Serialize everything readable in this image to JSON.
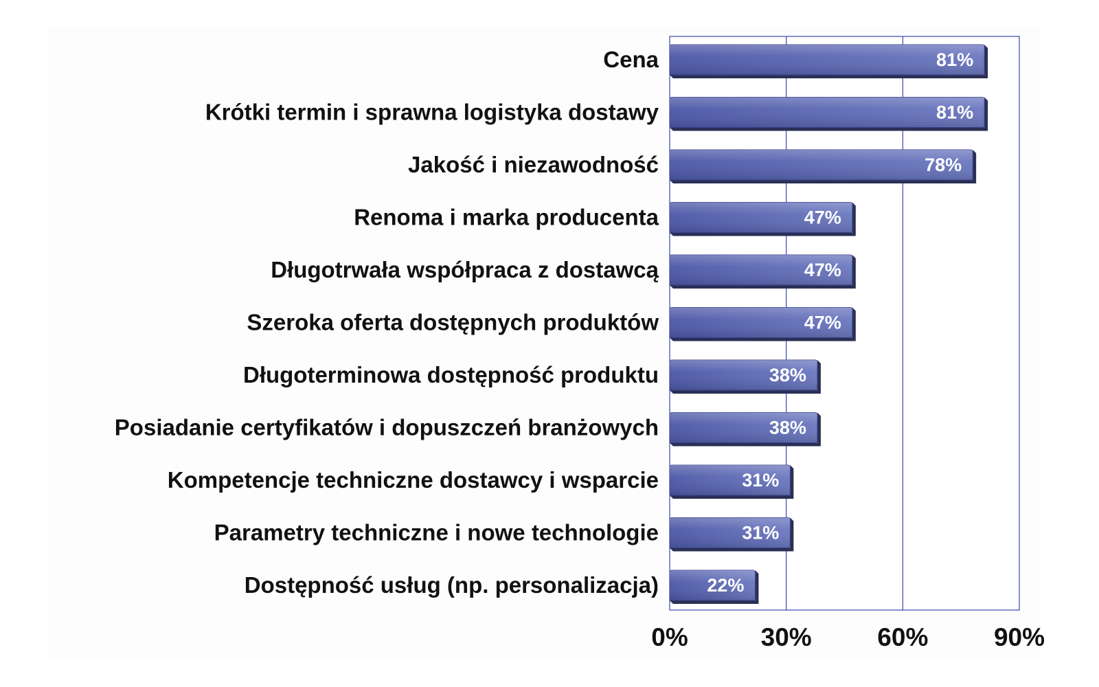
{
  "chart_data": {
    "type": "bar",
    "orientation": "horizontal",
    "title": "",
    "xlabel": "",
    "ylabel": "",
    "categories": [
      "Cena",
      "Krótki termin i sprawna logistyka dostawy",
      "Jakość i niezawodność",
      "Renoma i marka producenta",
      "Długotrwała współpraca z dostawcą",
      "Szeroka oferta dostępnych produktów",
      "Długoterminowa dostępność produktu",
      "Posiadanie certyfikatów i dopuszczeń branżowych",
      "Kompetencje techniczne dostawcy i wsparcie",
      "Parametry techniczne i nowe technologie",
      "Dostępność usług (np. personalizacja)"
    ],
    "values": [
      81,
      81,
      78,
      47,
      47,
      47,
      38,
      38,
      31,
      31,
      22
    ],
    "data_labels": [
      "81%",
      "81%",
      "78%",
      "47%",
      "47%",
      "47%",
      "38%",
      "38%",
      "31%",
      "31%",
      "22%"
    ],
    "xlim": [
      0,
      90
    ],
    "x_ticks": [
      0,
      30,
      60,
      90
    ],
    "x_tick_labels": [
      "0%",
      "30%",
      "60%",
      "90%"
    ],
    "grid": "vertical",
    "legend": "none",
    "bar_color": "#6b78bf",
    "bar_color_dark": "#4b57a6",
    "bar_shadow_color": "#2a2f55",
    "grid_color": "#3a47a8",
    "background_color": "#fdfdfd"
  }
}
